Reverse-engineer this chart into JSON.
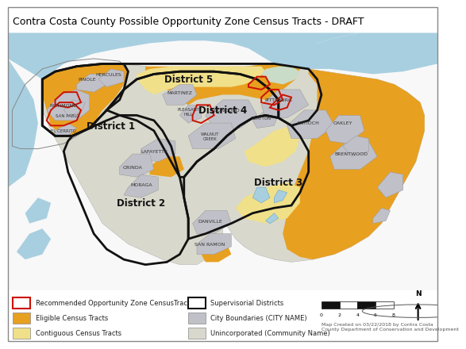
{
  "title": "Contra Costa County Possible Opportunity Zone Census Tracts - DRAFT",
  "title_fontsize": 9.0,
  "water_color": "#a8cfe0",
  "white_color": "#ffffff",
  "color_eligible": "#e8a020",
  "color_contiguous": "#f0e08a",
  "color_city": "#c0c0c8",
  "color_unincorporated": "#d8d8cc",
  "color_teal": "#a8d0c8",
  "color_brown": "#b09080",
  "color_rec_border": "#cc1100",
  "color_sup_border": "#111111",
  "color_bg": "#ffffff",
  "legend_items_left": [
    {
      "label": "Recommended Opportunity Zone CensusTracts",
      "fcolor": "#ffffff",
      "ecolor": "#cc1100",
      "lw": 1.5
    },
    {
      "label": "Eligible Census Tracts",
      "fcolor": "#e8a020",
      "ecolor": "#888888",
      "lw": 0.5
    },
    {
      "label": "Contiguous Census Tracts",
      "fcolor": "#f0e08a",
      "ecolor": "#888888",
      "lw": 0.5
    }
  ],
  "legend_items_right": [
    {
      "label": "Supervisorial Districts",
      "fcolor": "#ffffff",
      "ecolor": "#111111",
      "lw": 1.5
    },
    {
      "label": "City Boundaries (CITY NAME)",
      "fcolor": "#c0c0c8",
      "ecolor": "#888888",
      "lw": 0.5
    },
    {
      "label": "Unincorporated (Community Name)",
      "fcolor": "#d8d8cc",
      "ecolor": "#888888",
      "lw": 0.5
    }
  ],
  "scalebar_note": "Map Created on 03/22/2018 by Contra Costa\nCounty Department of Conservation and Development"
}
